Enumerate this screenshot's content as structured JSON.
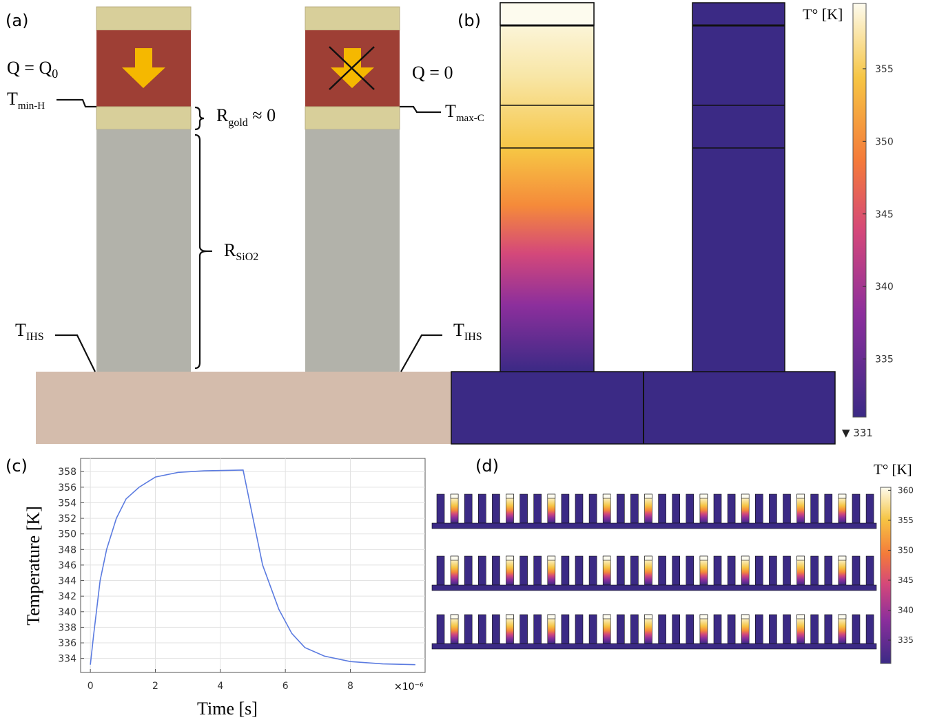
{
  "panel_labels": [
    "(a)",
    "(b)",
    "(c)",
    "(d)"
  ],
  "diagram": {
    "heat_left": {
      "main": "Q = Q",
      "sub": "0"
    },
    "heat_right": "Q = 0",
    "t_min_h": {
      "main": "T",
      "sub": "min-H"
    },
    "r_gold": {
      "main": "R",
      "sub": "gold",
      "tail": " ≈ 0"
    },
    "t_max_c": {
      "main": "T",
      "sub": "max-C"
    },
    "r_sio2": {
      "main": "R",
      "sub": "SiO2"
    },
    "t_ihs_left": {
      "main": "T",
      "sub": "IHS"
    },
    "t_ihs_right": {
      "main": "T",
      "sub": "IHS"
    }
  },
  "colorbar_b": {
    "title": "T° [K]",
    "lim": [
      331,
      359.5
    ],
    "ticks": [
      335,
      340,
      345,
      350,
      355
    ],
    "min_marker": {
      "value": 331,
      "label": "▼ 331"
    }
  },
  "chart_data": {
    "type": "line",
    "xlabel": "Time [s]",
    "ylabel": "Temperature [K]",
    "x_multiplier": "×10⁻⁶",
    "x": [
      0,
      0.1,
      0.3,
      0.5,
      0.8,
      1.1,
      1.5,
      2,
      2.7,
      3.5,
      4.7,
      5.3,
      5.8,
      6.2,
      6.6,
      7.2,
      8,
      9,
      10
    ],
    "series": [
      {
        "color": "#5b7be0",
        "values": [
          333.2,
          337,
          344,
          348,
          352,
          354.5,
          356,
          357.3,
          357.9,
          358.1,
          358.2,
          346,
          340.3,
          337.2,
          335.4,
          334.3,
          333.6,
          333.3,
          333.2
        ]
      }
    ],
    "xlim": [
      -0.3,
      10.3
    ],
    "ylim": [
      332.2,
      359.7
    ],
    "xticks": [
      0,
      2,
      4,
      6,
      8
    ],
    "yticks": [
      334,
      336,
      338,
      340,
      342,
      344,
      346,
      348,
      350,
      352,
      354,
      356,
      358
    ],
    "grid": true
  },
  "colorbar_d": {
    "title": "T° [K]",
    "lim": [
      331.1,
      360.5
    ],
    "ticks": [
      335,
      340,
      345,
      350,
      355,
      360
    ]
  }
}
